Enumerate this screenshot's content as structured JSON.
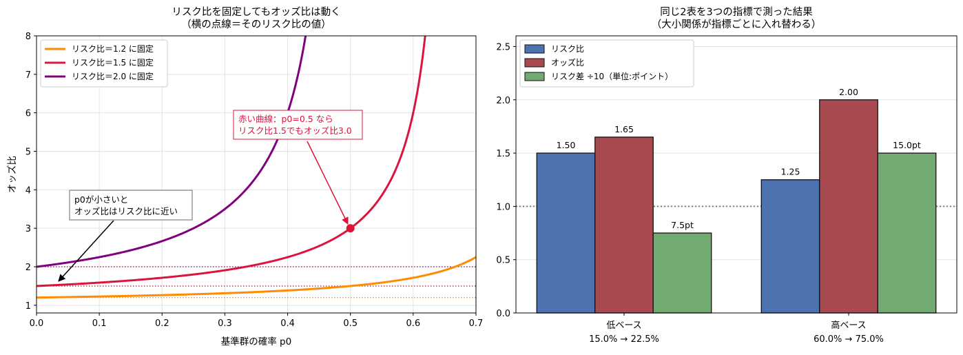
{
  "chart_data": [
    {
      "type": "line",
      "title": "リスク比を固定してもオッズ比は動く",
      "subtitle": "（横の点線＝そのリスク比の値）",
      "xlabel": "基準群の確率 p0",
      "ylabel": "オッズ比",
      "xlim": [
        0,
        0.7
      ],
      "ylim": [
        0.8,
        8
      ],
      "xticks": [
        "0.0",
        "0.1",
        "0.2",
        "0.3",
        "0.4",
        "0.5",
        "0.6",
        "0.7"
      ],
      "yticks": [
        "1",
        "2",
        "3",
        "4",
        "5",
        "6",
        "7",
        "8"
      ],
      "grid": true,
      "legend_position": "upper-left",
      "series": [
        {
          "name": "リスク比＝1.2 に固定",
          "risk_ratio": 1.2,
          "color": "#ff8c00",
          "x": [
            0.0,
            0.1,
            0.2,
            0.3,
            0.4,
            0.5,
            0.6,
            0.667
          ],
          "y": [
            1.2,
            1.23,
            1.26,
            1.31,
            1.38,
            1.5,
            1.8,
            2.0
          ]
        },
        {
          "name": "リスク比＝1.5 に固定",
          "risk_ratio": 1.5,
          "color": "#dc143c",
          "x": [
            0.0,
            0.1,
            0.2,
            0.3,
            0.4,
            0.5,
            0.6,
            0.62
          ],
          "y": [
            1.5,
            1.59,
            1.71,
            1.91,
            2.25,
            3.0,
            6.0,
            8.0
          ]
        },
        {
          "name": "リスク比＝2.0 に固定",
          "risk_ratio": 2.0,
          "color": "#800080",
          "x": [
            0.0,
            0.1,
            0.2,
            0.3,
            0.35,
            0.4,
            0.42
          ],
          "y": [
            2.0,
            2.25,
            2.67,
            3.5,
            4.33,
            6.0,
            7.25
          ]
        }
      ],
      "reference_lines": [
        {
          "y": 1.2,
          "color": "#ff8c00",
          "style": "dotted"
        },
        {
          "y": 1.5,
          "color": "#dc143c",
          "style": "dotted"
        },
        {
          "y": 2.0,
          "color": "#800080",
          "style": "dotted"
        }
      ],
      "highlight_point": {
        "x": 0.5,
        "y": 3.0,
        "color": "#dc143c"
      },
      "annotations": [
        {
          "id": "red",
          "lines": [
            "赤い曲線：p0=0.5 なら",
            "リスク比1.5でもオッズ比3.0"
          ],
          "color": "#dc143c",
          "points_to": [
            0.5,
            3.0
          ]
        },
        {
          "id": "black",
          "lines": [
            "p0が小さいと",
            "オッズ比はリスク比に近い"
          ],
          "color": "#000000",
          "points_to": [
            0.03,
            1.55
          ]
        }
      ]
    },
    {
      "type": "bar",
      "title": "同じ2表を3つの指標で測った結果",
      "subtitle": "（大小関係が指標ごとに入れ替わる）",
      "ylim": [
        0,
        2.6
      ],
      "yticks": [
        "0.0",
        "0.5",
        "1.0",
        "1.5",
        "2.0",
        "2.5"
      ],
      "grid": true,
      "legend_position": "upper-left",
      "reference_line": {
        "y": 1.0,
        "color": "#808080",
        "style": "dotted"
      },
      "categories": [
        {
          "name": "低ベース",
          "detail": "15.0% → 22.5%"
        },
        {
          "name": "高ベース",
          "detail": "60.0% → 75.0%"
        }
      ],
      "series": [
        {
          "name": "リスク比",
          "color": "#4c72b0",
          "values": [
            1.5,
            1.25
          ],
          "labels": [
            "1.50",
            "1.25"
          ]
        },
        {
          "name": "オッズ比",
          "color": "#a84b50",
          "values": [
            1.65,
            2.0
          ],
          "labels": [
            "1.65",
            "2.00"
          ]
        },
        {
          "name": "リスク差 ÷10（単位:ポイント）",
          "color": "#72aa72",
          "values": [
            0.75,
            1.5
          ],
          "labels": [
            "7.5pt",
            "15.0pt"
          ]
        }
      ]
    }
  ]
}
